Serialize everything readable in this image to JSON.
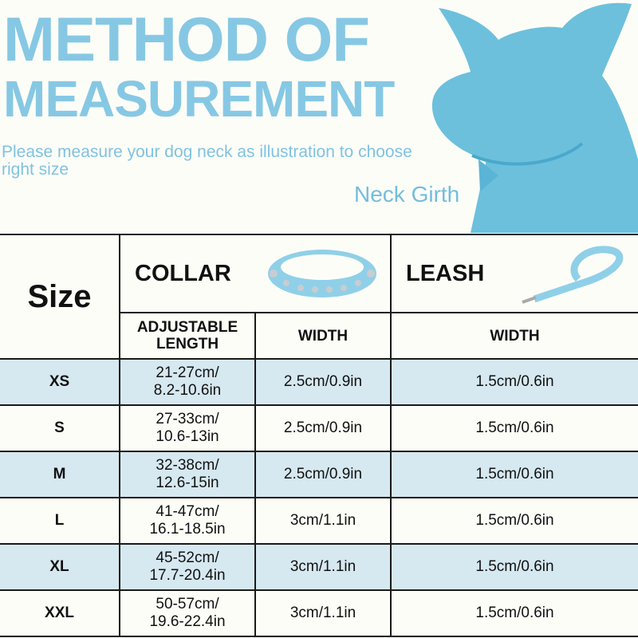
{
  "header": {
    "title_line1": "METHOD OF",
    "title_line2": "MEASUREMENT",
    "subtitle": "Please measure your dog neck as illustration to choose right size",
    "neck_label": "Neck Girth"
  },
  "colors": {
    "accent": "#86c8e4",
    "row_shade": "#d6e8f0",
    "silhouette": "#6cc0dc"
  },
  "table": {
    "size_header": "Size",
    "collar_header": "COLLAR",
    "leash_header": "LEASH",
    "col_length": "ADJUSTABLE LENGTH",
    "col_collar_width": "WIDTH",
    "col_leash_width": "WIDTH",
    "rows": [
      {
        "size": "XS",
        "length_cm": "21-27cm/",
        "length_in": "8.2-10.6in",
        "collar_width": "2.5cm/0.9in",
        "leash_width": "1.5cm/0.6in"
      },
      {
        "size": "S",
        "length_cm": "27-33cm/",
        "length_in": "10.6-13in",
        "collar_width": "2.5cm/0.9in",
        "leash_width": "1.5cm/0.6in"
      },
      {
        "size": "M",
        "length_cm": "32-38cm/",
        "length_in": "12.6-15in",
        "collar_width": "2.5cm/0.9in",
        "leash_width": "1.5cm/0.6in"
      },
      {
        "size": "L",
        "length_cm": "41-47cm/",
        "length_in": "16.1-18.5in",
        "collar_width": "3cm/1.1in",
        "leash_width": "1.5cm/0.6in"
      },
      {
        "size": "XL",
        "length_cm": "45-52cm/",
        "length_in": "17.7-20.4in",
        "collar_width": "3cm/1.1in",
        "leash_width": "1.5cm/0.6in"
      },
      {
        "size": "XXL",
        "length_cm": "50-57cm/",
        "length_in": "19.6-22.4in",
        "collar_width": "3cm/1.1in",
        "leash_width": "1.5cm/0.6in"
      }
    ]
  }
}
